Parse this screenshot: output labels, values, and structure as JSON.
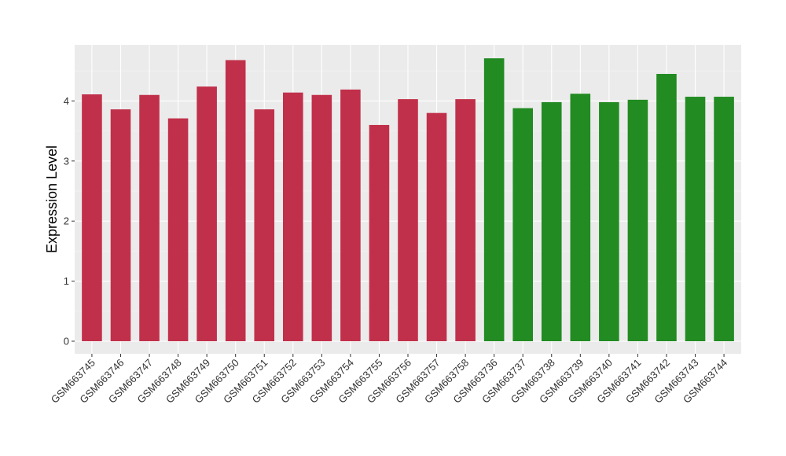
{
  "chart_data": {
    "type": "bar",
    "title": "",
    "xlabel": "",
    "ylabel": "Expression Level",
    "ylim": [
      -0.2,
      4.95
    ],
    "yticks": [
      0,
      1,
      2,
      3,
      4
    ],
    "grid": true,
    "legend": "none",
    "categories": [
      "GSM663745",
      "GSM663746",
      "GSM663747",
      "GSM663748",
      "GSM663749",
      "GSM663750",
      "GSM663751",
      "GSM663752",
      "GSM663753",
      "GSM663754",
      "GSM663755",
      "GSM663756",
      "GSM663757",
      "GSM663758",
      "GSM663736",
      "GSM663737",
      "GSM663738",
      "GSM663739",
      "GSM663740",
      "GSM663741",
      "GSM663742",
      "GSM663743",
      "GSM663744"
    ],
    "values": [
      4.11,
      3.86,
      4.1,
      3.71,
      4.24,
      4.68,
      3.86,
      4.14,
      4.1,
      4.19,
      3.6,
      4.03,
      3.8,
      4.03,
      4.71,
      3.88,
      3.98,
      4.12,
      3.98,
      4.02,
      4.45,
      4.07,
      4.07
    ],
    "group_colors": [
      "#C1304A",
      "#C1304A",
      "#C1304A",
      "#C1304A",
      "#C1304A",
      "#C1304A",
      "#C1304A",
      "#C1304A",
      "#C1304A",
      "#C1304A",
      "#C1304A",
      "#C1304A",
      "#C1304A",
      "#C1304A",
      "#228B22",
      "#228B22",
      "#228B22",
      "#228B22",
      "#228B22",
      "#228B22",
      "#228B22",
      "#228B22",
      "#228B22"
    ]
  },
  "style": {
    "panel_bg": "#EBEBEB",
    "grid_major": "#FFFFFF",
    "grid_minor": "#F5F5F5",
    "tick_color": "#333333"
  }
}
